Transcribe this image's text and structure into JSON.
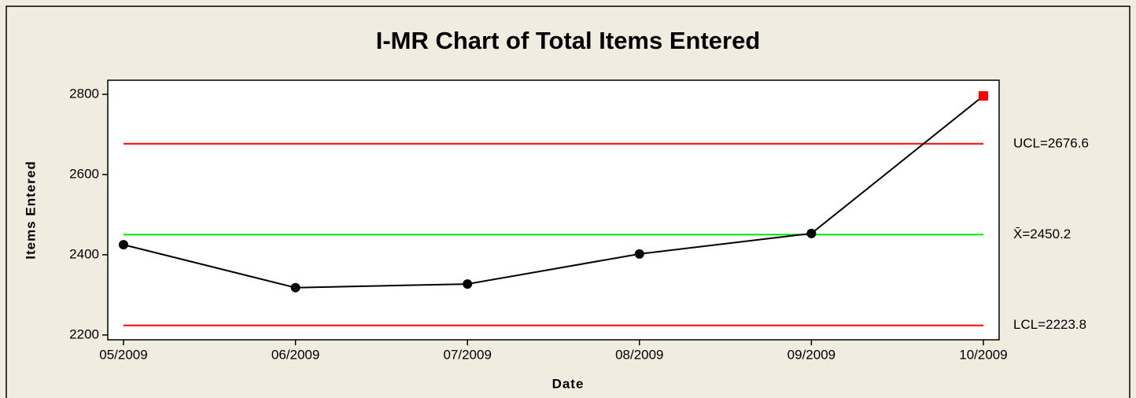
{
  "chart_data": {
    "type": "line",
    "title": "I-MR Chart of Total Items Entered",
    "xlabel": "Date",
    "ylabel": "Items Entered",
    "categories": [
      "05/2009",
      "06/2009",
      "07/2009",
      "08/2009",
      "09/2009",
      "10/2009"
    ],
    "series": [
      {
        "name": "Items Entered",
        "color": "#000000",
        "values": [
          2425,
          2318,
          2327,
          2402,
          2453,
          2796
        ]
      }
    ],
    "out_of_control_color": "#ff0000",
    "control_lines": [
      {
        "label": "UCL=2676.6",
        "value": 2676.6,
        "color": "#ff0000"
      },
      {
        "label": "X̄=2450.2",
        "value": 2450.2,
        "color": "#00ee00"
      },
      {
        "label": "LCL=2223.8",
        "value": 2223.8,
        "color": "#ff0000"
      }
    ],
    "ylim": [
      2188,
      2835
    ],
    "yticks": [
      2200,
      2400,
      2600,
      2800
    ]
  }
}
